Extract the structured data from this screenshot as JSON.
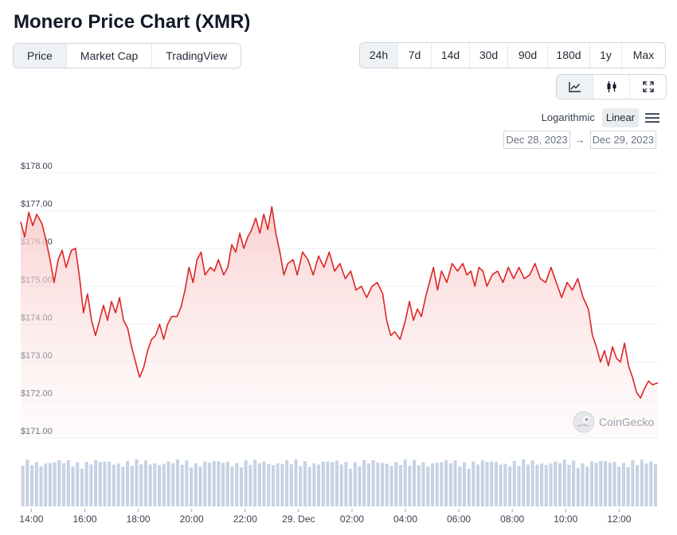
{
  "title": "Monero Price Chart (XMR)",
  "tabs": [
    {
      "label": "Price",
      "active": true
    },
    {
      "label": "Market Cap",
      "active": false
    },
    {
      "label": "TradingView",
      "active": false
    }
  ],
  "ranges": [
    {
      "label": "24h",
      "active": true
    },
    {
      "label": "7d",
      "active": false
    },
    {
      "label": "14d",
      "active": false
    },
    {
      "label": "30d",
      "active": false
    },
    {
      "label": "90d",
      "active": false
    },
    {
      "label": "180d",
      "active": false
    },
    {
      "label": "1y",
      "active": false
    },
    {
      "label": "Max",
      "active": false
    }
  ],
  "views": [
    {
      "icon": "line-chart-icon",
      "active": true
    },
    {
      "icon": "candlestick-icon",
      "active": false
    },
    {
      "icon": "expand-icon",
      "active": false
    }
  ],
  "scale": {
    "logarithmic": "Logarithmic",
    "linear": "Linear",
    "active": "linear",
    "menu_icon": "hamburger-menu-icon"
  },
  "date_range": {
    "from": "Dec 28, 2023",
    "to": "Dec 29, 2023",
    "separator": "→"
  },
  "watermark": {
    "text": "CoinGecko",
    "icon": "coingecko-logo-icon"
  },
  "colors": {
    "line": "#dc2626",
    "fill": "#fde2e2",
    "volume": "#c7d2e4",
    "grid": "#eceff3",
    "active_bg": "#eff2f5"
  },
  "chart_data": {
    "type": "area",
    "ylim": [
      171,
      178
    ],
    "y_ticks": [
      {
        "v": 178,
        "label": "$178.00"
      },
      {
        "v": 177,
        "label": "$177.00"
      },
      {
        "v": 176,
        "label": "$176.00"
      },
      {
        "v": 175,
        "label": "$175.00"
      },
      {
        "v": 174,
        "label": "$174.00"
      },
      {
        "v": 173,
        "label": "$173.00"
      },
      {
        "v": 172,
        "label": "$172.00"
      },
      {
        "v": 171,
        "label": "$171.00"
      }
    ],
    "xlim": [
      13.6,
      37.45
    ],
    "x_ticks": [
      {
        "t": 14,
        "label": "14:00"
      },
      {
        "t": 16,
        "label": "16:00"
      },
      {
        "t": 18,
        "label": "18:00"
      },
      {
        "t": 20,
        "label": "20:00"
      },
      {
        "t": 22,
        "label": "22:00"
      },
      {
        "t": 24,
        "label": "29. Dec"
      },
      {
        "t": 26,
        "label": "02:00"
      },
      {
        "t": 28,
        "label": "04:00"
      },
      {
        "t": 30,
        "label": "06:00"
      },
      {
        "t": 32,
        "label": "08:00"
      },
      {
        "t": 34,
        "label": "10:00"
      },
      {
        "t": 36,
        "label": "12:00"
      }
    ],
    "x_unit": "hours from Dec 28, 2023 00:00",
    "series": [
      {
        "values": [
          [
            13.6,
            176.6
          ],
          [
            13.75,
            176.2
          ],
          [
            13.9,
            176.85
          ],
          [
            14.05,
            176.5
          ],
          [
            14.2,
            176.8
          ],
          [
            14.4,
            176.55
          ],
          [
            14.55,
            176.1
          ],
          [
            14.7,
            175.6
          ],
          [
            14.85,
            175.0
          ],
          [
            15.0,
            175.6
          ],
          [
            15.15,
            175.85
          ],
          [
            15.3,
            175.4
          ],
          [
            15.5,
            175.85
          ],
          [
            15.65,
            175.9
          ],
          [
            15.8,
            175.15
          ],
          [
            15.95,
            174.2
          ],
          [
            16.1,
            174.7
          ],
          [
            16.25,
            174.0
          ],
          [
            16.4,
            173.6
          ],
          [
            16.55,
            174.0
          ],
          [
            16.7,
            174.4
          ],
          [
            16.85,
            174.0
          ],
          [
            17.0,
            174.5
          ],
          [
            17.15,
            174.2
          ],
          [
            17.3,
            174.6
          ],
          [
            17.45,
            174.0
          ],
          [
            17.6,
            173.8
          ],
          [
            17.75,
            173.3
          ],
          [
            17.9,
            172.9
          ],
          [
            18.05,
            172.5
          ],
          [
            18.2,
            172.75
          ],
          [
            18.35,
            173.2
          ],
          [
            18.5,
            173.5
          ],
          [
            18.65,
            173.6
          ],
          [
            18.8,
            173.9
          ],
          [
            18.95,
            173.5
          ],
          [
            19.1,
            173.9
          ],
          [
            19.25,
            174.1
          ],
          [
            19.45,
            174.1
          ],
          [
            19.6,
            174.35
          ],
          [
            19.75,
            174.8
          ],
          [
            19.9,
            175.4
          ],
          [
            20.05,
            175.0
          ],
          [
            20.2,
            175.6
          ],
          [
            20.35,
            175.8
          ],
          [
            20.5,
            175.2
          ],
          [
            20.7,
            175.4
          ],
          [
            20.85,
            175.3
          ],
          [
            21.0,
            175.6
          ],
          [
            21.2,
            175.2
          ],
          [
            21.35,
            175.4
          ],
          [
            21.5,
            176.0
          ],
          [
            21.65,
            175.8
          ],
          [
            21.8,
            176.3
          ],
          [
            21.95,
            175.9
          ],
          [
            22.1,
            176.2
          ],
          [
            22.25,
            176.4
          ],
          [
            22.4,
            176.7
          ],
          [
            22.55,
            176.3
          ],
          [
            22.7,
            176.8
          ],
          [
            22.85,
            176.4
          ],
          [
            23.0,
            177.0
          ],
          [
            23.15,
            176.3
          ],
          [
            23.3,
            175.8
          ],
          [
            23.45,
            175.2
          ],
          [
            23.6,
            175.5
          ],
          [
            23.8,
            175.6
          ],
          [
            23.95,
            175.2
          ],
          [
            24.15,
            175.8
          ],
          [
            24.35,
            175.6
          ],
          [
            24.55,
            175.2
          ],
          [
            24.75,
            175.7
          ],
          [
            24.95,
            175.4
          ],
          [
            25.15,
            175.8
          ],
          [
            25.35,
            175.3
          ],
          [
            25.55,
            175.5
          ],
          [
            25.75,
            175.1
          ],
          [
            25.95,
            175.3
          ],
          [
            26.15,
            174.8
          ],
          [
            26.35,
            174.9
          ],
          [
            26.55,
            174.6
          ],
          [
            26.75,
            174.9
          ],
          [
            26.95,
            175.0
          ],
          [
            27.15,
            174.7
          ],
          [
            27.3,
            174.0
          ],
          [
            27.45,
            173.6
          ],
          [
            27.6,
            173.7
          ],
          [
            27.8,
            173.5
          ],
          [
            28.0,
            174.0
          ],
          [
            28.15,
            174.5
          ],
          [
            28.3,
            174.0
          ],
          [
            28.45,
            174.3
          ],
          [
            28.6,
            174.1
          ],
          [
            28.75,
            174.6
          ],
          [
            28.9,
            175.0
          ],
          [
            29.05,
            175.4
          ],
          [
            29.2,
            174.8
          ],
          [
            29.35,
            175.3
          ],
          [
            29.55,
            175.0
          ],
          [
            29.75,
            175.5
          ],
          [
            29.95,
            175.3
          ],
          [
            30.15,
            175.5
          ],
          [
            30.3,
            175.2
          ],
          [
            30.45,
            175.3
          ],
          [
            30.6,
            174.9
          ],
          [
            30.75,
            175.4
          ],
          [
            30.9,
            175.3
          ],
          [
            31.05,
            174.9
          ],
          [
            31.25,
            175.2
          ],
          [
            31.45,
            175.3
          ],
          [
            31.65,
            175.0
          ],
          [
            31.85,
            175.4
          ],
          [
            32.05,
            175.1
          ],
          [
            32.25,
            175.4
          ],
          [
            32.45,
            175.1
          ],
          [
            32.65,
            175.2
          ],
          [
            32.85,
            175.5
          ],
          [
            33.05,
            175.1
          ],
          [
            33.25,
            175.0
          ],
          [
            33.45,
            175.4
          ],
          [
            33.65,
            175.0
          ],
          [
            33.85,
            174.6
          ],
          [
            34.05,
            175.0
          ],
          [
            34.25,
            174.8
          ],
          [
            34.45,
            175.1
          ],
          [
            34.65,
            174.6
          ],
          [
            34.85,
            174.3
          ],
          [
            35.0,
            173.6
          ],
          [
            35.15,
            173.3
          ],
          [
            35.3,
            172.9
          ],
          [
            35.45,
            173.2
          ],
          [
            35.6,
            172.8
          ],
          [
            35.75,
            173.3
          ],
          [
            35.9,
            173.0
          ],
          [
            36.05,
            172.9
          ],
          [
            36.2,
            173.4
          ],
          [
            36.35,
            172.8
          ],
          [
            36.5,
            172.5
          ],
          [
            36.65,
            172.1
          ],
          [
            36.8,
            171.95
          ],
          [
            36.95,
            172.2
          ],
          [
            37.1,
            172.4
          ],
          [
            37.25,
            172.3
          ],
          [
            37.45,
            172.35
          ]
        ]
      }
    ],
    "volume_bars": 140
  }
}
